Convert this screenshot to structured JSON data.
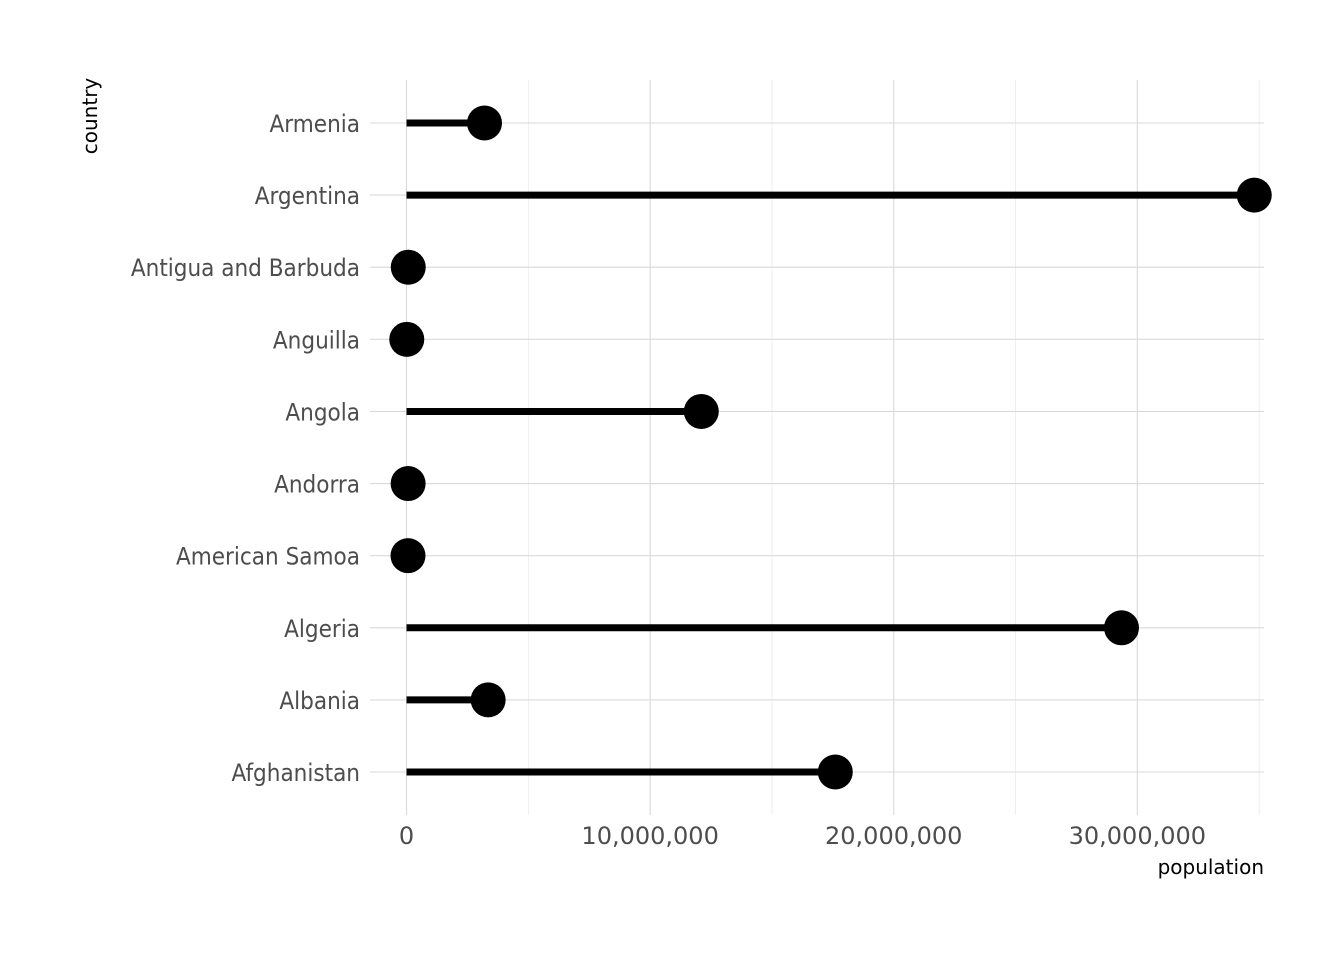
{
  "chart_data": {
    "type": "lollipop",
    "xlabel": "population",
    "ylabel": "country",
    "xlim": [
      -1500000,
      35200000
    ],
    "x_ticks": [
      0,
      10000000,
      20000000,
      30000000
    ],
    "x_tick_labels": [
      "0",
      "10,000,000",
      "20,000,000",
      "30,000,000"
    ],
    "x_minor_ticks": [
      5000000,
      15000000,
      25000000,
      35000000
    ],
    "grid": true,
    "categories": [
      "Afghanistan",
      "Albania",
      "Algeria",
      "American Samoa",
      "Andorra",
      "Angola",
      "Anguilla",
      "Antigua and Barbuda",
      "Argentina",
      "Armenia"
    ],
    "values": [
      17600000,
      3350000,
      29350000,
      60000,
      65000,
      12100000,
      10000,
      70000,
      34800000,
      3200000
    ],
    "colors": {
      "mark": "#000000",
      "grid": "#d9d9d9",
      "tick_text": "#4d4d4d"
    }
  }
}
